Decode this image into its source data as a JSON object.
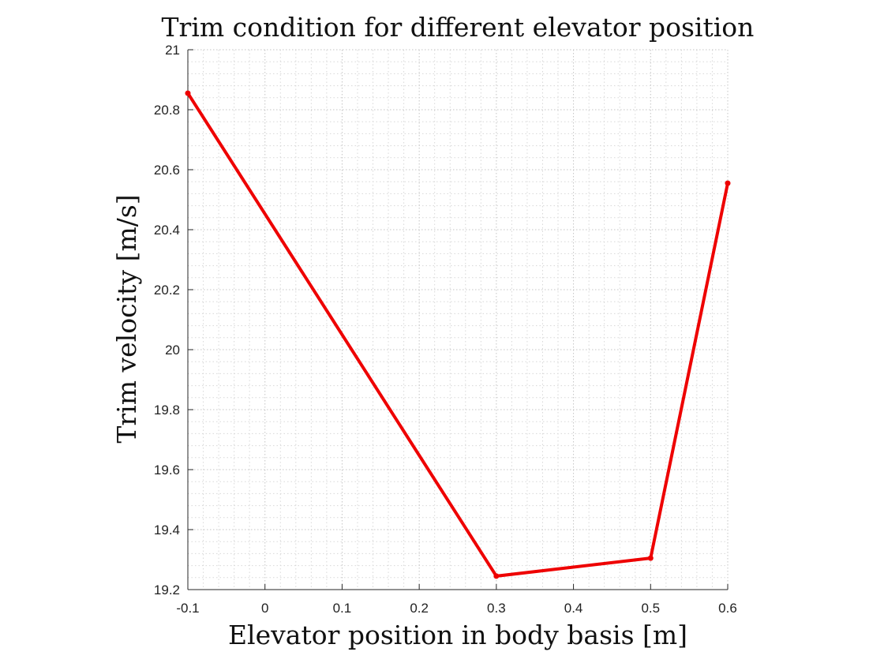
{
  "chart_data": {
    "type": "line",
    "title": "Trim condition for different elevator position",
    "xlabel": "Elevator position in body basis [m]",
    "ylabel": "Trim velocity [m/s]",
    "xlim": [
      -0.1,
      0.6
    ],
    "ylim": [
      19.2,
      21
    ],
    "xticks": [
      "-0.1",
      "0",
      "0.1",
      "0.2",
      "0.3",
      "0.4",
      "0.5",
      "0.6"
    ],
    "yticks": [
      "19.2",
      "19.4",
      "19.6",
      "19.8",
      "20",
      "20.2",
      "20.4",
      "20.6",
      "20.8",
      "21"
    ],
    "grid": true,
    "series": [
      {
        "color": "#ee0000",
        "marker": "dot",
        "x": [
          -0.1,
          0.3,
          0.5,
          0.6
        ],
        "y": [
          20.855,
          19.245,
          19.305,
          20.555
        ]
      }
    ]
  }
}
